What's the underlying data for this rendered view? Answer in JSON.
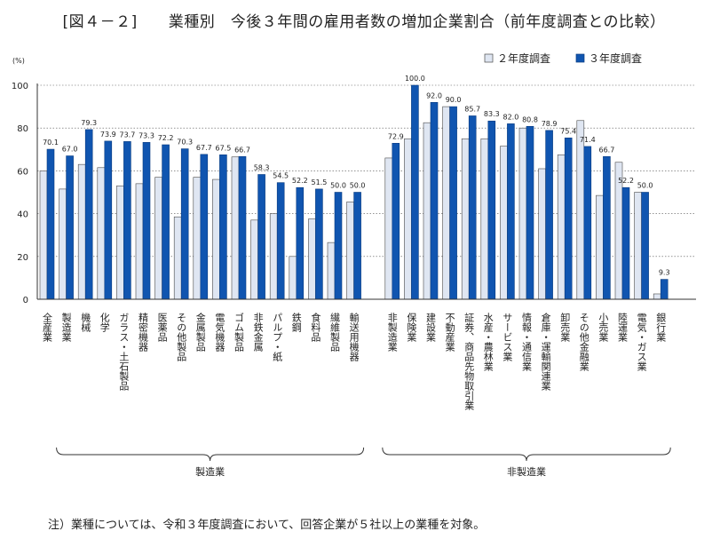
{
  "chart_data": {
    "type": "bar",
    "title": "[図４－２]　　業種別　今後３年間の雇用者数の増加企業割合（前年度調査との比較）",
    "ylabel": "(%)",
    "ylim": [
      0,
      100
    ],
    "yticks": [
      0,
      20,
      40,
      60,
      80,
      100
    ],
    "grid": true,
    "legend_position": "top-right",
    "series": [
      {
        "name": "２年度調査",
        "color": "#dfe6f2",
        "values": [
          60.0,
          51.5,
          63.0,
          61.5,
          53.0,
          54.0,
          57.0,
          38.5,
          57.0,
          56.0,
          66.5,
          37.0,
          40.0,
          20.0,
          37.5,
          26.5,
          45.5,
          66.0,
          75.0,
          82.5,
          90.0,
          75.0,
          75.0,
          71.5,
          80.0,
          61.0,
          67.5,
          83.5,
          48.5,
          64.0,
          50.0,
          2.5
        ]
      },
      {
        "name": "３年度調査",
        "color": "#1055b0",
        "values": [
          70.1,
          67.0,
          79.3,
          73.9,
          73.7,
          73.3,
          72.2,
          70.3,
          67.7,
          67.5,
          66.7,
          58.3,
          54.5,
          52.2,
          51.5,
          50.0,
          50.0,
          72.9,
          100.0,
          92.0,
          90.0,
          85.7,
          83.3,
          82.0,
          80.8,
          78.9,
          75.4,
          71.4,
          66.7,
          52.2,
          50.0,
          9.3
        ]
      }
    ],
    "labels": [
      "72.9",
      "100.0",
      "92.0",
      "90.0",
      "85.7",
      "83.3",
      "82.0",
      "80.8",
      "78.9",
      "75.4",
      "71.4",
      "66.7",
      "52.2",
      "50.0",
      "9.3"
    ],
    "categories": [
      "全産業",
      "製造業",
      "機械",
      "化学",
      "ガラス・土石製品",
      "精密機器",
      "医薬品",
      "その他製品",
      "金属製品",
      "電気機器",
      "ゴム製品",
      "非鉄金属",
      "パルプ・紙",
      "鉄鋼",
      "食料品",
      "繊維製品",
      "輸送用機器",
      "非製造業",
      "保険業",
      "建設業",
      "不動産業",
      "証券、商品先物取引業",
      "水産・農林業",
      "サービス業",
      "情報・通信業",
      "倉庫・運輸関連業",
      "卸売業",
      "その他金融業",
      "小売業",
      "陸運業",
      "電気・ガス業",
      "銀行業"
    ],
    "groups": [
      {
        "label": "製造業",
        "from": 1,
        "to": 16
      },
      {
        "label": "非製造業",
        "from": 17,
        "to": 31
      }
    ],
    "note": "注）業種については、令和３年度調査において、回答企業が５社以上の業種を対象。"
  }
}
